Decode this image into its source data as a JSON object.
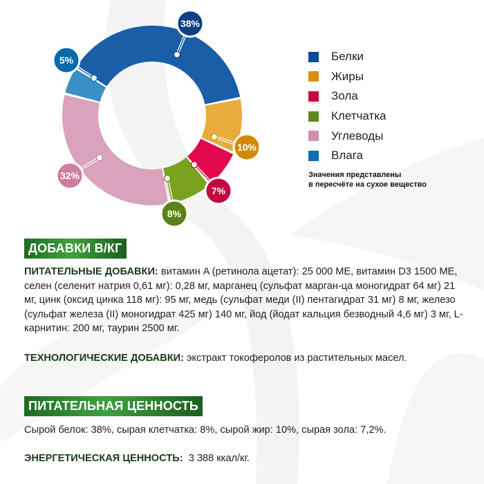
{
  "chart_data": {
    "type": "pie",
    "subtype": "donut",
    "title": "",
    "categories": [
      "Белки",
      "Жиры",
      "Зола",
      "Клетчатка",
      "Углеводы",
      "Влага"
    ],
    "values": [
      38,
      10,
      7,
      8,
      32,
      5
    ],
    "labels": [
      "38%",
      "10%",
      "7%",
      "8%",
      "32%",
      "5%"
    ],
    "colors": [
      "#1a5ea8",
      "#e8ab3c",
      "#e2064d",
      "#7aa21e",
      "#d9a3bd",
      "#3a8fc6"
    ],
    "label_colors": [
      "#0e3f86",
      "#d08a00",
      "#c4073f",
      "#5a821a",
      "#cf7ea2",
      "#0a6aab"
    ],
    "legend_position": "right",
    "note": "Значения представлены в пересчёте на сухое вещество"
  },
  "legend": {
    "items": [
      {
        "label": "Белки",
        "color": "#0b4a94"
      },
      {
        "label": "Жиры",
        "color": "#d6920a"
      },
      {
        "label": "Зола",
        "color": "#c8083f"
      },
      {
        "label": "Клетчатка",
        "color": "#5e8a1c"
      },
      {
        "label": "Углеводы",
        "color": "#d48fb0"
      },
      {
        "label": "Влага",
        "color": "#0f6fb3"
      }
    ],
    "note_line1": "Значения представлены",
    "note_line2": "в пересчёте на сухое вещество"
  },
  "additives": {
    "banner": "ДОБАВКИ В/КГ",
    "nutritional_label": "ПИТАТЕЛЬНЫЕ ДОБАВКИ:",
    "nutritional_text": " витамин A (ретинола ацетат): 25 000 МЕ, витамин D3 1500 МЕ, селен (селенит натрия 0,61 мг): 0,28 мг, марганец (сульфат марган-ца моногидрат 64 мг) 21 мг, цинк (оксид цинка 118 мг): 95 мг, медь (сульфат меди (II) пентагидрат 31 мг) 8 мг, железо (сульфат железа (II) моногидрат 425 мг) 140 мг, йод (йодат кальция безводный 4,6 мг) 3 мг, L-карнитин: 200 мг, таурин 2500 мг.",
    "technological_label": "ТЕХНОЛОГИЧЕСКИЕ ДОБАВКИ:",
    "technological_text": " экстракт токоферолов из растительных масел."
  },
  "nutrition": {
    "banner": "ПИТАТЕЛЬНАЯ ЦЕННОСТЬ",
    "text": "Сырой белок: 38%, сырая клетчатка: 8%, сырой жир: 10%, сырая зола: 7,2%.",
    "energy_label": "ЭНЕРГЕТИЧЕСКАЯ ЦЕННОСТЬ:",
    "energy_value": "  3 388 ккал/кг."
  }
}
